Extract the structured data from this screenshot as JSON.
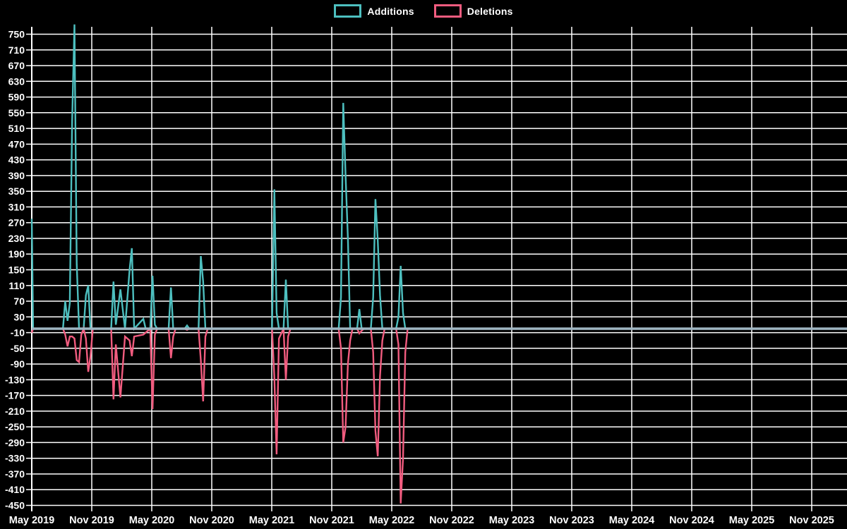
{
  "chart_data": {
    "type": "line",
    "title": "",
    "legend_position": "top-center",
    "grid": true,
    "background_color": "#000000",
    "grid_color": "#ffffff",
    "zero_line_color": "#9fb6c3",
    "text_color": "#ffffff",
    "y_min": -450,
    "y_max": 750,
    "y_tick_step": 40,
    "x_tick_labels": [
      "May 2019",
      "Nov 2019",
      "May 2020",
      "Nov 2020",
      "May 2021",
      "Nov 2021",
      "May 2022",
      "Nov 2022",
      "May 2023",
      "Nov 2023",
      "May 2024",
      "Nov 2024",
      "May 2025",
      "Nov 2025"
    ],
    "x_domain": [
      "2019-05-01",
      "2025-11-01"
    ],
    "series": [
      {
        "name": "Additions",
        "color": "#4dbfbf"
      },
      {
        "name": "Deletions",
        "color": "#f15c7f"
      }
    ],
    "points_format": [
      "week_date",
      "additions",
      "deletions"
    ],
    "points": [
      [
        "2019-05-01",
        280,
        -10
      ],
      [
        "2019-05-05",
        0,
        0
      ],
      [
        "2019-08-04",
        0,
        0
      ],
      [
        "2019-08-11",
        70,
        -15
      ],
      [
        "2019-08-18",
        20,
        -45
      ],
      [
        "2019-08-25",
        65,
        -20
      ],
      [
        "2019-09-01",
        530,
        -20
      ],
      [
        "2019-09-08",
        775,
        -25
      ],
      [
        "2019-09-15",
        165,
        -80
      ],
      [
        "2019-09-22",
        0,
        -85
      ],
      [
        "2019-09-29",
        0,
        -15
      ],
      [
        "2019-10-06",
        0,
        0
      ],
      [
        "2019-10-13",
        85,
        -25
      ],
      [
        "2019-10-20",
        110,
        -110
      ],
      [
        "2019-10-27",
        0,
        -70
      ],
      [
        "2019-11-03",
        0,
        0
      ],
      [
        "2019-12-29",
        0,
        0
      ],
      [
        "2020-01-05",
        120,
        -180
      ],
      [
        "2020-01-12",
        10,
        -40
      ],
      [
        "2020-01-26",
        100,
        -175
      ],
      [
        "2020-02-09",
        0,
        -20
      ],
      [
        "2020-02-23",
        150,
        -30
      ],
      [
        "2020-03-01",
        205,
        -70
      ],
      [
        "2020-03-08",
        0,
        -20
      ],
      [
        "2020-04-05",
        25,
        -15
      ],
      [
        "2020-04-12",
        0,
        -10
      ],
      [
        "2020-04-26",
        0,
        0
      ],
      [
        "2020-05-03",
        135,
        -205
      ],
      [
        "2020-05-10",
        10,
        -15
      ],
      [
        "2020-05-17",
        0,
        0
      ],
      [
        "2020-06-21",
        0,
        0
      ],
      [
        "2020-06-28",
        105,
        -75
      ],
      [
        "2020-07-05",
        0,
        -20
      ],
      [
        "2020-07-12",
        0,
        0
      ],
      [
        "2020-08-09",
        0,
        0
      ],
      [
        "2020-08-16",
        8,
        -3
      ],
      [
        "2020-08-23",
        0,
        0
      ],
      [
        "2020-09-20",
        0,
        0
      ],
      [
        "2020-09-27",
        185,
        -80
      ],
      [
        "2020-10-04",
        120,
        -185
      ],
      [
        "2020-10-11",
        0,
        -20
      ],
      [
        "2020-10-18",
        0,
        0
      ],
      [
        "2021-05-02",
        0,
        0
      ],
      [
        "2021-05-09",
        355,
        -125
      ],
      [
        "2021-05-16",
        40,
        -320
      ],
      [
        "2021-05-23",
        0,
        -25
      ],
      [
        "2021-06-06",
        0,
        0
      ],
      [
        "2021-06-13",
        125,
        -130
      ],
      [
        "2021-06-20",
        0,
        -20
      ],
      [
        "2021-06-27",
        0,
        0
      ],
      [
        "2021-11-21",
        0,
        0
      ],
      [
        "2021-11-28",
        80,
        -50
      ],
      [
        "2021-12-05",
        575,
        -290
      ],
      [
        "2021-12-12",
        390,
        -250
      ],
      [
        "2021-12-19",
        230,
        -90
      ],
      [
        "2021-12-26",
        0,
        -30
      ],
      [
        "2022-01-02",
        0,
        0
      ],
      [
        "2022-01-16",
        0,
        0
      ],
      [
        "2022-01-23",
        50,
        -12
      ],
      [
        "2022-01-30",
        0,
        -5
      ],
      [
        "2022-02-06",
        0,
        0
      ],
      [
        "2022-02-27",
        0,
        0
      ],
      [
        "2022-03-06",
        80,
        -60
      ],
      [
        "2022-03-13",
        330,
        -260
      ],
      [
        "2022-03-20",
        225,
        -325
      ],
      [
        "2022-03-27",
        85,
        -120
      ],
      [
        "2022-04-03",
        0,
        -30
      ],
      [
        "2022-04-10",
        0,
        0
      ],
      [
        "2022-05-15",
        0,
        0
      ],
      [
        "2022-05-22",
        30,
        -40
      ],
      [
        "2022-05-29",
        160,
        -445
      ],
      [
        "2022-06-05",
        40,
        -330
      ],
      [
        "2022-06-12",
        0,
        -60
      ],
      [
        "2022-06-19",
        0,
        0
      ]
    ]
  }
}
